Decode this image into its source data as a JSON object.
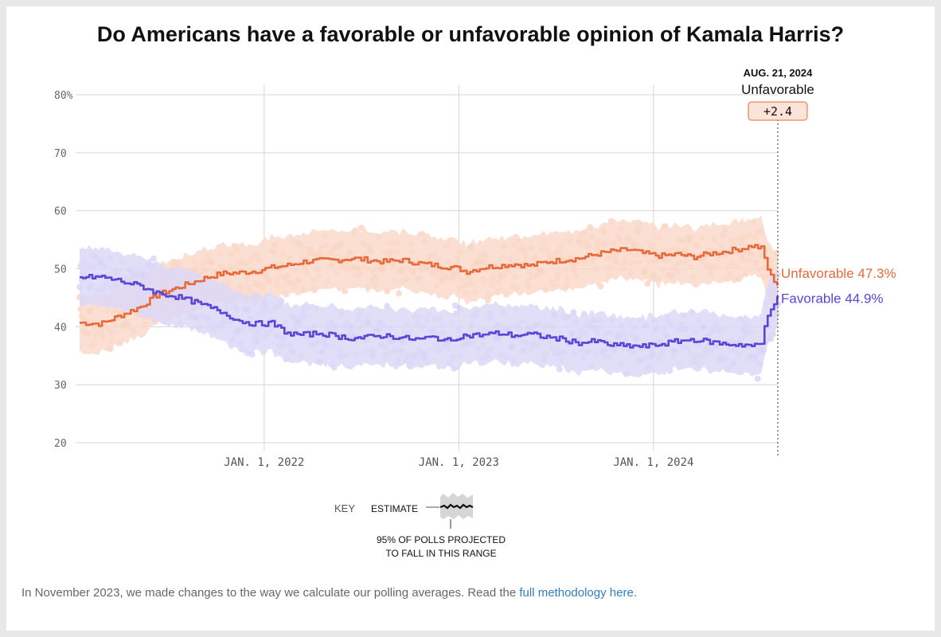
{
  "title": "Do Americans have a favorable or unfavorable opinion of Kamala Harris?",
  "annotation": {
    "date": "AUG. 21, 2024",
    "leader": "Unfavorable",
    "margin": "+2.4"
  },
  "key": {
    "label": "KEY",
    "estimate": "ESTIMATE",
    "range_line1": "95% OF POLLS PROJECTED",
    "range_line2": "TO FALL IN THIS RANGE"
  },
  "footnote": {
    "text": "In November 2023, we made changes to the way we calculate our polling averages. Read the ",
    "link": "full methodology here",
    "end": "."
  },
  "colors": {
    "unfavorable": "#e8693a",
    "favorable": "#5a45d6",
    "unfavorable_band": "#f9d9ca",
    "favorable_band": "#dcd8f7",
    "unfavorable_dot": "#f2a98a",
    "favorable_dot": "#b3aaef",
    "margin_box": "#fbe3d8"
  },
  "chart_data": {
    "type": "line",
    "title": "Do Americans have a favorable or unfavorable opinion of Kamala Harris?",
    "xlabel": "",
    "ylabel": "",
    "xlim": [
      "2021-01-20",
      "2024-08-21"
    ],
    "ylim": [
      20,
      80
    ],
    "y_ticks": [
      20,
      30,
      40,
      50,
      60,
      70,
      80
    ],
    "y_tick_labels": [
      "20",
      "30",
      "40",
      "50",
      "60",
      "70",
      "80%"
    ],
    "x_ticks": [
      "2022-01-01",
      "2023-01-01",
      "2024-01-01"
    ],
    "x_tick_labels": [
      "JAN. 1, 2022",
      "JAN. 1, 2023",
      "JAN. 1, 2024"
    ],
    "grid": true,
    "series": [
      {
        "name": "Unfavorable",
        "end_label": "Unfavorable 47.3%",
        "band_halfwidth": 5,
        "points": [
          [
            "2021-01-20",
            40.7
          ],
          [
            "2021-03-01",
            40.5
          ],
          [
            "2021-04-15",
            42.3
          ],
          [
            "2021-05-15",
            43.5
          ],
          [
            "2021-06-15",
            45.5
          ],
          [
            "2021-07-15",
            46.5
          ],
          [
            "2021-08-15",
            47.5
          ],
          [
            "2021-09-15",
            48.5
          ],
          [
            "2021-10-15",
            49.2
          ],
          [
            "2021-11-15",
            49.3
          ],
          [
            "2021-12-15",
            49.6
          ],
          [
            "2022-01-15",
            50.2
          ],
          [
            "2022-02-15",
            50.6
          ],
          [
            "2022-03-15",
            51.2
          ],
          [
            "2022-04-15",
            51.4
          ],
          [
            "2022-05-15",
            51.5
          ],
          [
            "2022-06-15",
            51.8
          ],
          [
            "2022-07-15",
            51.5
          ],
          [
            "2022-08-15",
            51.2
          ],
          [
            "2022-09-15",
            51.5
          ],
          [
            "2022-10-15",
            51.0
          ],
          [
            "2022-11-15",
            50.6
          ],
          [
            "2022-12-15",
            50.3
          ],
          [
            "2023-01-01",
            50.0
          ],
          [
            "2023-01-15",
            49.5
          ],
          [
            "2023-02-15",
            50.2
          ],
          [
            "2023-03-15",
            50.5
          ],
          [
            "2023-04-15",
            50.8
          ],
          [
            "2023-05-15",
            50.5
          ],
          [
            "2023-06-15",
            51.2
          ],
          [
            "2023-07-15",
            51.5
          ],
          [
            "2023-08-15",
            51.8
          ],
          [
            "2023-09-15",
            52.5
          ],
          [
            "2023-10-15",
            53.0
          ],
          [
            "2023-11-15",
            53.3
          ],
          [
            "2023-12-15",
            52.6
          ],
          [
            "2024-01-15",
            52.2
          ],
          [
            "2024-02-15",
            52.5
          ],
          [
            "2024-03-15",
            52.0
          ],
          [
            "2024-04-15",
            52.6
          ],
          [
            "2024-05-15",
            53.0
          ],
          [
            "2024-06-15",
            53.5
          ],
          [
            "2024-07-05",
            54.0
          ],
          [
            "2024-07-21",
            53.5
          ],
          [
            "2024-07-28",
            51.5
          ],
          [
            "2024-08-05",
            49.0
          ],
          [
            "2024-08-14",
            48.0
          ],
          [
            "2024-08-21",
            47.3
          ]
        ]
      },
      {
        "name": "Favorable",
        "end_label": "Favorable 44.9%",
        "band_halfwidth": 5,
        "points": [
          [
            "2021-01-20",
            48.5
          ],
          [
            "2021-03-01",
            48.6
          ],
          [
            "2021-04-01",
            48.0
          ],
          [
            "2021-05-15",
            47.0
          ],
          [
            "2021-06-15",
            45.8
          ],
          [
            "2021-07-15",
            45.3
          ],
          [
            "2021-08-15",
            44.5
          ],
          [
            "2021-09-15",
            43.5
          ],
          [
            "2021-10-15",
            42.5
          ],
          [
            "2021-11-15",
            41.0
          ],
          [
            "2021-12-15",
            40.5
          ],
          [
            "2022-01-15",
            40.6
          ],
          [
            "2022-02-15",
            38.8
          ],
          [
            "2022-03-15",
            38.6
          ],
          [
            "2022-04-15",
            38.9
          ],
          [
            "2022-05-15",
            38.4
          ],
          [
            "2022-06-15",
            38.0
          ],
          [
            "2022-07-15",
            38.2
          ],
          [
            "2022-08-15",
            38.5
          ],
          [
            "2022-09-15",
            38.1
          ],
          [
            "2022-10-15",
            37.8
          ],
          [
            "2022-11-15",
            38.2
          ],
          [
            "2022-12-15",
            37.5
          ],
          [
            "2023-01-01",
            38.4
          ],
          [
            "2023-02-15",
            38.6
          ],
          [
            "2023-03-15",
            38.9
          ],
          [
            "2023-04-15",
            38.5
          ],
          [
            "2023-05-15",
            38.7
          ],
          [
            "2023-06-15",
            38.2
          ],
          [
            "2023-07-15",
            37.8
          ],
          [
            "2023-08-15",
            37.2
          ],
          [
            "2023-09-15",
            37.5
          ],
          [
            "2023-10-15",
            36.8
          ],
          [
            "2023-11-15",
            36.7
          ],
          [
            "2023-12-15",
            36.6
          ],
          [
            "2024-01-15",
            37.0
          ],
          [
            "2024-02-15",
            37.5
          ],
          [
            "2024-03-15",
            37.8
          ],
          [
            "2024-04-15",
            37.4
          ],
          [
            "2024-05-15",
            37.0
          ],
          [
            "2024-06-15",
            36.9
          ],
          [
            "2024-07-10",
            36.7
          ],
          [
            "2024-07-21",
            37.0
          ],
          [
            "2024-07-28",
            40.5
          ],
          [
            "2024-08-05",
            43.0
          ],
          [
            "2024-08-14",
            44.2
          ],
          [
            "2024-08-21",
            44.9
          ]
        ]
      }
    ]
  }
}
